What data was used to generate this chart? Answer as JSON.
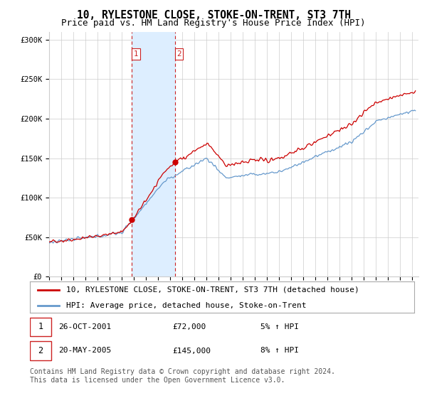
{
  "title": "10, RYLESTONE CLOSE, STOKE-ON-TRENT, ST3 7TH",
  "subtitle": "Price paid vs. HM Land Registry's House Price Index (HPI)",
  "ylim": [
    0,
    310000
  ],
  "yticks": [
    0,
    50000,
    100000,
    150000,
    200000,
    250000,
    300000
  ],
  "ytick_labels": [
    "£0",
    "£50K",
    "£100K",
    "£150K",
    "£200K",
    "£250K",
    "£300K"
  ],
  "xlim_start": 1995.0,
  "xlim_end": 2025.5,
  "transaction1_date": 2001.82,
  "transaction1_price": 72000,
  "transaction2_date": 2005.38,
  "transaction2_price": 145000,
  "property_line_color": "#cc0000",
  "hpi_line_color": "#6699cc",
  "shade_color": "#ddeeff",
  "vline_color": "#cc2222",
  "marker_color": "#cc0000",
  "grid_color": "#cccccc",
  "background_color": "#ffffff",
  "legend_border_color": "#aaaaaa",
  "legend_property": "10, RYLESTONE CLOSE, STOKE-ON-TRENT, ST3 7TH (detached house)",
  "legend_hpi": "HPI: Average price, detached house, Stoke-on-Trent",
  "annotation1_date": "26-OCT-2001",
  "annotation1_price": "£72,000",
  "annotation1_hpi": "5% ↑ HPI",
  "annotation2_date": "20-MAY-2005",
  "annotation2_price": "£145,000",
  "annotation2_hpi": "8% ↑ HPI",
  "footer": "Contains HM Land Registry data © Crown copyright and database right 2024.\nThis data is licensed under the Open Government Licence v3.0.",
  "title_fontsize": 10.5,
  "subtitle_fontsize": 9,
  "tick_fontsize": 7.5,
  "legend_fontsize": 8,
  "annotation_fontsize": 8,
  "footer_fontsize": 7
}
